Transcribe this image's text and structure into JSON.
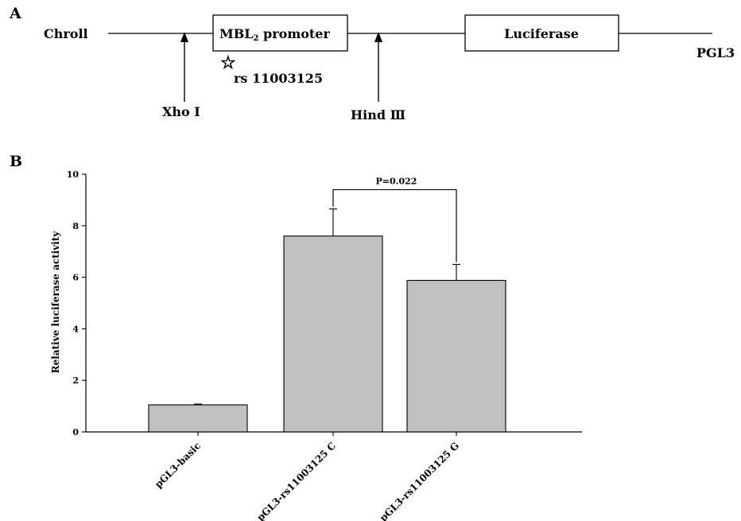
{
  "panel_a": {
    "label": "A",
    "left_label": "Chroll",
    "promoter_main": "MBL",
    "promoter_sub": "2",
    "promoter_rest": " promoter",
    "snp_label": "rs 11003125",
    "xho_label": "Xho Ⅰ",
    "hind_label": "Hind Ⅲ",
    "reporter_label": "Luciferase",
    "right_label": "PGL3",
    "star_glyph": "☆"
  },
  "panel_b": {
    "label": "B"
  },
  "chart_data": {
    "type": "bar",
    "title": "",
    "xlabel": "",
    "ylabel": "Relative luciferase activity",
    "ylim": [
      0,
      10
    ],
    "yticks": [
      "0",
      "2",
      "4",
      "6",
      "8",
      "10"
    ],
    "categories": [
      "pGL3-basic",
      "pGL3-rs11003125 C",
      "pGL3-rs11003125 G"
    ],
    "values": [
      1.05,
      7.6,
      5.88
    ],
    "errors": [
      0.03,
      1.05,
      0.62
    ],
    "bar_color": "#c0c0c0",
    "significance": {
      "from": 1,
      "to": 2,
      "label": "P=0.022",
      "y": 9.4
    }
  }
}
